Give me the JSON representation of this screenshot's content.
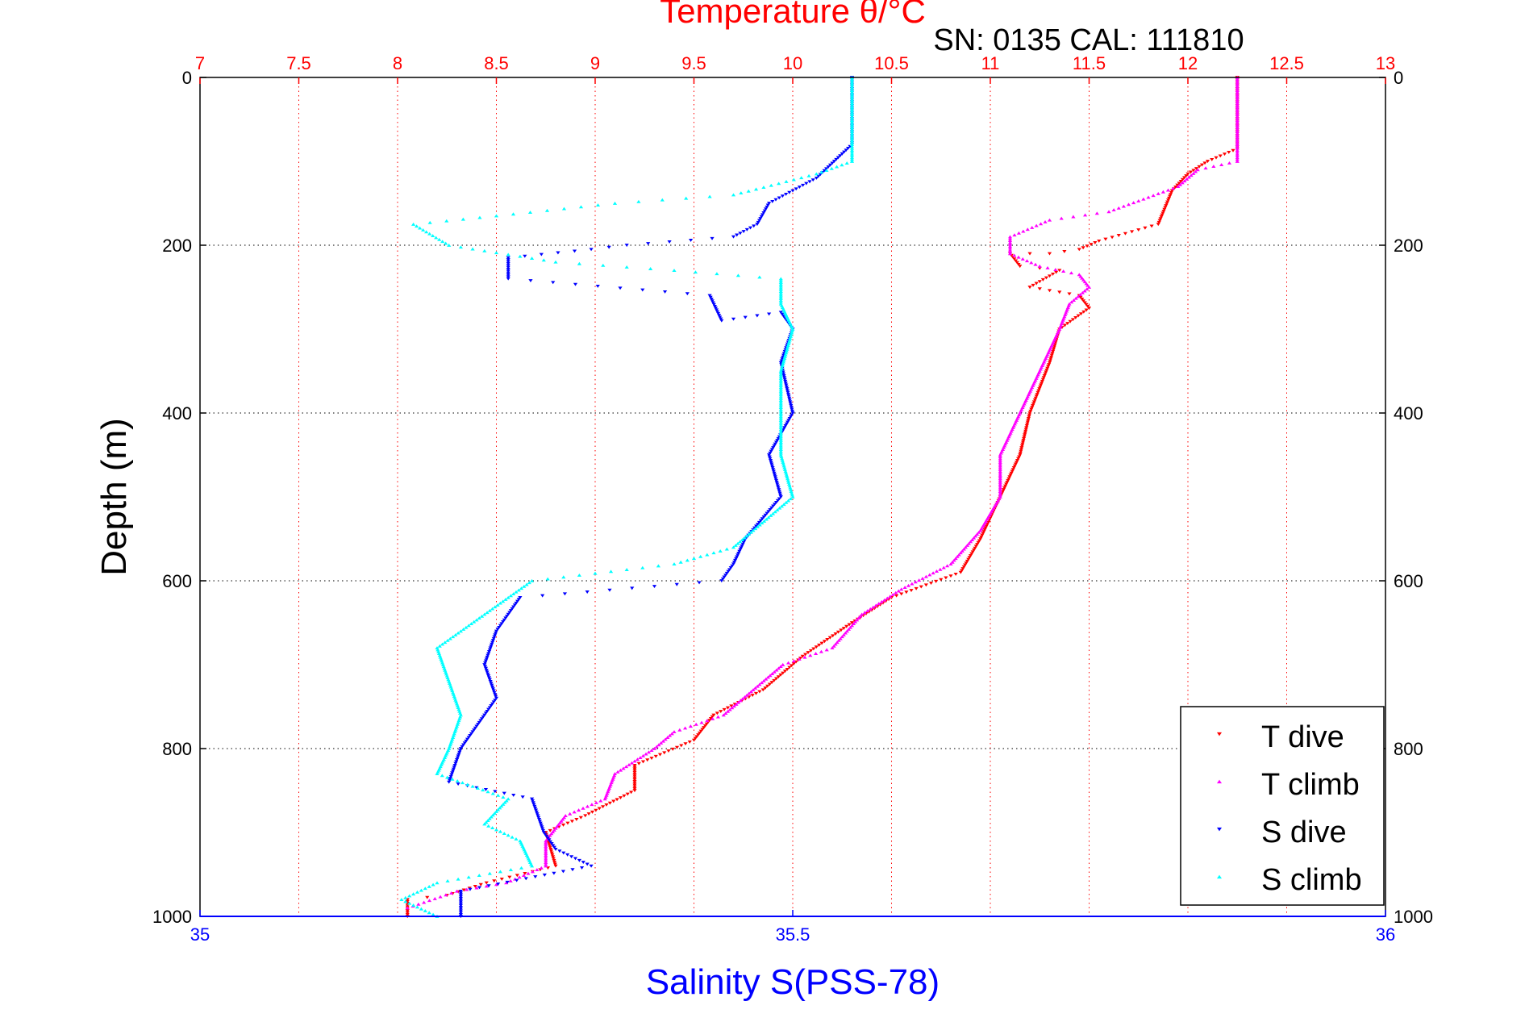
{
  "chart_data": {
    "type": "scatter",
    "title": "Temperature θ/°C",
    "subtitle": "SN: 0135  CAL: 111810",
    "ylabel": "Depth (m)",
    "xlabel_bottom": "Salinity S(PSS-78)",
    "ylim": [
      1000,
      0
    ],
    "y_ticks": [
      0,
      200,
      400,
      600,
      800,
      1000
    ],
    "x_top": {
      "label": "Temperature θ/°C",
      "range": [
        7,
        13
      ],
      "ticks": [
        7,
        7.5,
        8,
        8.5,
        9,
        9.5,
        10,
        10.5,
        11,
        11.5,
        12,
        12.5,
        13
      ]
    },
    "x_bottom": {
      "label": "Salinity S(PSS-78)",
      "range": [
        35,
        36
      ],
      "ticks": [
        35,
        35.5,
        36
      ]
    },
    "grid": true,
    "legend_position": "bottom-right",
    "colors": {
      "title": "#ff0000",
      "temp_axis": "#ff0000",
      "sal_axis": "#0000ff",
      "t_dive": "#ff0000",
      "t_climb": "#ff00ff",
      "s_dive": "#0000ff",
      "s_climb": "#00ffff"
    },
    "series": [
      {
        "name": "T dive",
        "axis": "temperature",
        "marker": "triangle-down",
        "color": "#ff0000",
        "points": [
          [
            12.25,
            0
          ],
          [
            12.25,
            60
          ],
          [
            12.25,
            85
          ],
          [
            12.1,
            100
          ],
          [
            12.0,
            115
          ],
          [
            11.92,
            135
          ],
          [
            11.85,
            175
          ],
          [
            11.55,
            195
          ],
          [
            11.45,
            205
          ],
          [
            11.3,
            210
          ],
          [
            11.1,
            210
          ],
          [
            11.15,
            225
          ],
          [
            11.35,
            230
          ],
          [
            11.2,
            250
          ],
          [
            11.45,
            260
          ],
          [
            11.5,
            275
          ],
          [
            11.35,
            300
          ],
          [
            11.3,
            340
          ],
          [
            11.2,
            400
          ],
          [
            11.15,
            450
          ],
          [
            11.05,
            500
          ],
          [
            10.95,
            550
          ],
          [
            10.85,
            590
          ],
          [
            10.5,
            620
          ],
          [
            10.3,
            650
          ],
          [
            10.05,
            690
          ],
          [
            9.85,
            730
          ],
          [
            9.6,
            760
          ],
          [
            9.5,
            790
          ],
          [
            9.2,
            820
          ],
          [
            9.2,
            850
          ],
          [
            8.95,
            880
          ],
          [
            8.75,
            900
          ],
          [
            8.8,
            940
          ],
          [
            8.45,
            960
          ],
          [
            8.25,
            975
          ],
          [
            8.05,
            980
          ],
          [
            8.05,
            1000
          ]
        ]
      },
      {
        "name": "T climb",
        "axis": "temperature",
        "marker": "triangle-up",
        "color": "#ff00ff",
        "points": [
          [
            12.25,
            0
          ],
          [
            12.25,
            60
          ],
          [
            12.25,
            100
          ],
          [
            12.05,
            110
          ],
          [
            11.95,
            130
          ],
          [
            11.6,
            160
          ],
          [
            11.3,
            170
          ],
          [
            11.1,
            190
          ],
          [
            11.1,
            210
          ],
          [
            11.25,
            225
          ],
          [
            11.45,
            235
          ],
          [
            11.5,
            250
          ],
          [
            11.4,
            270
          ],
          [
            11.35,
            300
          ],
          [
            11.25,
            350
          ],
          [
            11.15,
            400
          ],
          [
            11.05,
            450
          ],
          [
            11.05,
            500
          ],
          [
            10.95,
            540
          ],
          [
            10.8,
            580
          ],
          [
            10.55,
            610
          ],
          [
            10.35,
            640
          ],
          [
            10.2,
            680
          ],
          [
            9.95,
            700
          ],
          [
            9.8,
            730
          ],
          [
            9.65,
            760
          ],
          [
            9.4,
            780
          ],
          [
            9.3,
            800
          ],
          [
            9.1,
            830
          ],
          [
            9.05,
            860
          ],
          [
            8.85,
            880
          ],
          [
            8.75,
            910
          ],
          [
            8.75,
            940
          ],
          [
            8.55,
            960
          ],
          [
            8.3,
            970
          ],
          [
            8.05,
            990
          ]
        ]
      },
      {
        "name": "S dive",
        "axis": "salinity",
        "marker": "triangle-down",
        "color": "#0000ff",
        "points": [
          [
            35.55,
            0
          ],
          [
            35.55,
            80
          ],
          [
            35.52,
            120
          ],
          [
            35.48,
            150
          ],
          [
            35.47,
            175
          ],
          [
            35.45,
            190
          ],
          [
            35.36,
            200
          ],
          [
            35.33,
            205
          ],
          [
            35.26,
            215
          ],
          [
            35.26,
            240
          ],
          [
            35.43,
            260
          ],
          [
            35.44,
            290
          ],
          [
            35.49,
            280
          ],
          [
            35.5,
            300
          ],
          [
            35.49,
            340
          ],
          [
            35.5,
            400
          ],
          [
            35.48,
            450
          ],
          [
            35.49,
            500
          ],
          [
            35.46,
            550
          ],
          [
            35.45,
            580
          ],
          [
            35.44,
            600
          ],
          [
            35.27,
            620
          ],
          [
            35.25,
            660
          ],
          [
            35.24,
            700
          ],
          [
            35.25,
            740
          ],
          [
            35.23,
            780
          ],
          [
            35.22,
            800
          ],
          [
            35.21,
            840
          ],
          [
            35.28,
            860
          ],
          [
            35.29,
            900
          ],
          [
            35.3,
            920
          ],
          [
            35.33,
            940
          ],
          [
            35.22,
            970
          ],
          [
            35.22,
            1000
          ]
        ]
      },
      {
        "name": "S climb",
        "axis": "salinity",
        "marker": "triangle-up",
        "color": "#00ffff",
        "points": [
          [
            35.55,
            0
          ],
          [
            35.55,
            80
          ],
          [
            35.55,
            100
          ],
          [
            35.52,
            115
          ],
          [
            35.45,
            140
          ],
          [
            35.35,
            150
          ],
          [
            35.25,
            165
          ],
          [
            35.18,
            175
          ],
          [
            35.21,
            200
          ],
          [
            35.3,
            220
          ],
          [
            35.4,
            230
          ],
          [
            35.49,
            240
          ],
          [
            35.49,
            270
          ],
          [
            35.5,
            300
          ],
          [
            35.49,
            350
          ],
          [
            35.49,
            400
          ],
          [
            35.49,
            450
          ],
          [
            35.5,
            500
          ],
          [
            35.45,
            560
          ],
          [
            35.4,
            580
          ],
          [
            35.28,
            600
          ],
          [
            35.24,
            640
          ],
          [
            35.2,
            680
          ],
          [
            35.21,
            720
          ],
          [
            35.22,
            760
          ],
          [
            35.21,
            800
          ],
          [
            35.2,
            830
          ],
          [
            35.26,
            860
          ],
          [
            35.24,
            890
          ],
          [
            35.27,
            910
          ],
          [
            35.28,
            940
          ],
          [
            35.2,
            960
          ],
          [
            35.17,
            980
          ],
          [
            35.2,
            1000
          ]
        ]
      }
    ]
  }
}
